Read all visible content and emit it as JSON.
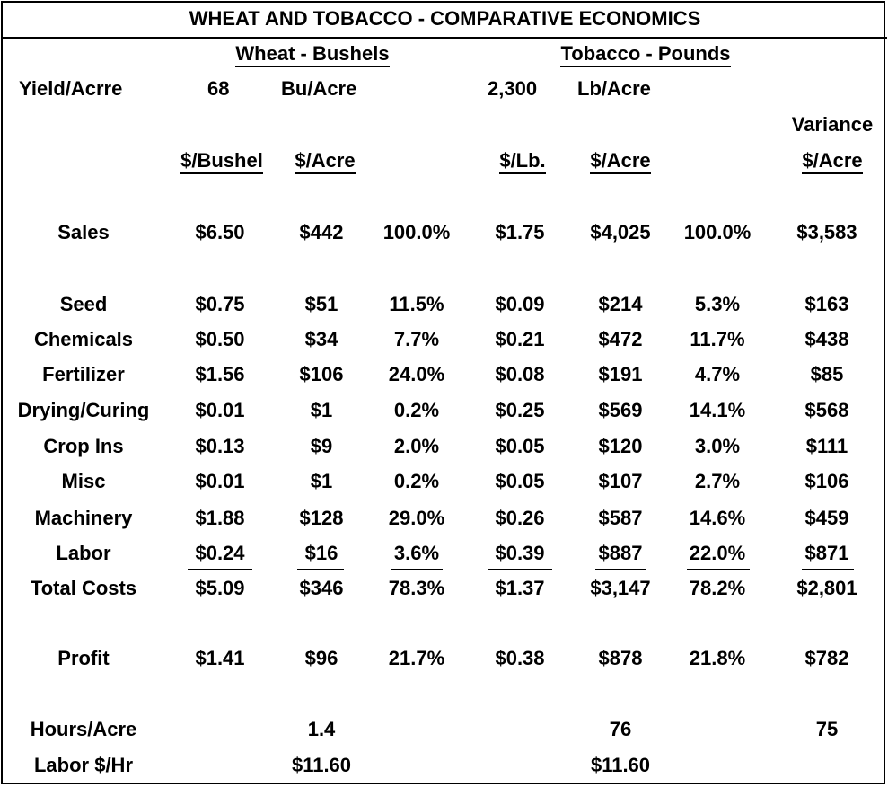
{
  "title": "WHEAT AND TOBACCO - COMPARATIVE ECONOMICS",
  "groups": {
    "wheat": "Wheat - Bushels",
    "tobacco": "Tobacco - Pounds"
  },
  "yield": {
    "label": "Yield/Acrre",
    "wheat_value": "68",
    "wheat_unit": "Bu/Acre",
    "tobacco_value": "2,300",
    "tobacco_unit": "Lb/Acre"
  },
  "headers": {
    "wheat_per_unit": "$/Bushel",
    "wheat_per_acre": "$/Acre",
    "tobacco_per_unit": "$/Lb.",
    "tobacco_per_acre": "$/Acre",
    "variance_top": "Variance",
    "variance_bottom": "$/Acre"
  },
  "rows": [
    {
      "label": "Sales",
      "w_unit": "$6.50",
      "w_acre": "$442",
      "w_pct": "100.0%",
      "t_unit": "$1.75",
      "t_acre": "$4,025",
      "t_pct": "100.0%",
      "variance": "$3,583"
    },
    {
      "label": "Seed",
      "w_unit": "$0.75",
      "w_acre": "$51",
      "w_pct": "11.5%",
      "t_unit": "$0.09",
      "t_acre": "$214",
      "t_pct": "5.3%",
      "variance": "$163"
    },
    {
      "label": "Chemicals",
      "w_unit": "$0.50",
      "w_acre": "$34",
      "w_pct": "7.7%",
      "t_unit": "$0.21",
      "t_acre": "$472",
      "t_pct": "11.7%",
      "variance": "$438"
    },
    {
      "label": "Fertilizer",
      "w_unit": "$1.56",
      "w_acre": "$106",
      "w_pct": "24.0%",
      "t_unit": "$0.08",
      "t_acre": "$191",
      "t_pct": "4.7%",
      "variance": "$85"
    },
    {
      "label": "Drying/Curing",
      "w_unit": "$0.01",
      "w_acre": "$1",
      "w_pct": "0.2%",
      "t_unit": "$0.25",
      "t_acre": "$569",
      "t_pct": "14.1%",
      "variance": "$568"
    },
    {
      "label": "Crop Ins",
      "w_unit": "$0.13",
      "w_acre": "$9",
      "w_pct": "2.0%",
      "t_unit": "$0.05",
      "t_acre": "$120",
      "t_pct": "3.0%",
      "variance": "$111"
    },
    {
      "label": "Misc",
      "w_unit": "$0.01",
      "w_acre": "$1",
      "w_pct": "0.2%",
      "t_unit": "$0.05",
      "t_acre": "$107",
      "t_pct": "2.7%",
      "variance": "$106"
    },
    {
      "label": "Machinery",
      "w_unit": "$1.88",
      "w_acre": "$128",
      "w_pct": "29.0%",
      "t_unit": "$0.26",
      "t_acre": "$587",
      "t_pct": "14.6%",
      "variance": "$459"
    },
    {
      "label": "Labor",
      "w_unit": "$0.24",
      "w_acre": "$16",
      "w_pct": "3.6%",
      "t_unit": "$0.39",
      "t_acre": "$887",
      "t_pct": "22.0%",
      "variance": "$871"
    },
    {
      "label": "Total Costs",
      "w_unit": "$5.09",
      "w_acre": "$346",
      "w_pct": "78.3%",
      "t_unit": "$1.37",
      "t_acre": "$3,147",
      "t_pct": "78.2%",
      "variance": "$2,801"
    },
    {
      "label": "Profit",
      "w_unit": "$1.41",
      "w_acre": "$96",
      "w_pct": "21.7%",
      "t_unit": "$0.38",
      "t_acre": "$878",
      "t_pct": "21.8%",
      "variance": "$782"
    }
  ],
  "hours": {
    "label": "Hours/Acre",
    "wheat": "1.4",
    "tobacco": "76",
    "variance": "75"
  },
  "labor_rate": {
    "label": "Labor $/Hr",
    "wheat": "$11.60",
    "tobacco": "$11.60"
  }
}
